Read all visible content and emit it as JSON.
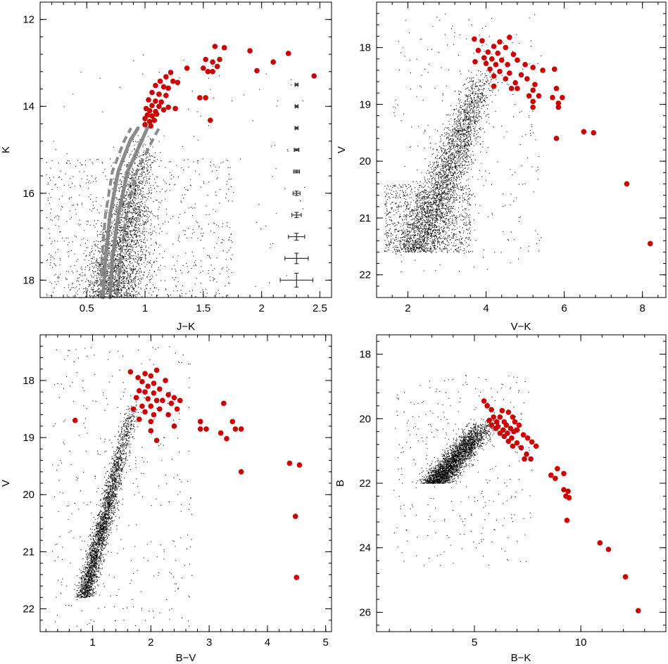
{
  "figure": {
    "colors": {
      "field_star": "#000000",
      "member_star": "#cc0000",
      "isochrone_solid": "#808080",
      "isochrone_dashed": "#808080",
      "error_bar": "#333333"
    }
  },
  "chart_data": [
    {
      "id": "jk-k",
      "type": "scatter",
      "xlabel": "J−K",
      "ylabel": "K",
      "xlim": [
        0.1,
        2.6
      ],
      "ylim": [
        18.4,
        11.6
      ],
      "y_inverted": true,
      "x_ticks": [
        0.5,
        1,
        1.5,
        2,
        2.5
      ],
      "x_tick_labels": [
        "0.5",
        "1",
        "1.5",
        "2",
        "2.5"
      ],
      "y_ticks": [
        12,
        14,
        16,
        18
      ],
      "y_tick_labels": [
        "12",
        "14",
        "16",
        "18"
      ],
      "red_points": [
        [
          1.6,
          12.62
        ],
        [
          1.68,
          12.65
        ],
        [
          1.9,
          12.72
        ],
        [
          2.23,
          12.78
        ],
        [
          1.52,
          12.92
        ],
        [
          1.64,
          12.92
        ],
        [
          1.58,
          12.98
        ],
        [
          2.1,
          12.98
        ],
        [
          1.36,
          13.12
        ],
        [
          1.5,
          13.12
        ],
        [
          1.62,
          13.08
        ],
        [
          1.96,
          13.18
        ],
        [
          1.54,
          13.2
        ],
        [
          1.58,
          13.2
        ],
        [
          1.22,
          13.22
        ],
        [
          1.18,
          13.32
        ],
        [
          1.13,
          13.42
        ],
        [
          1.24,
          13.42
        ],
        [
          1.28,
          13.45
        ],
        [
          2.45,
          13.3
        ],
        [
          1.09,
          13.52
        ],
        [
          1.16,
          13.55
        ],
        [
          1.2,
          13.58
        ],
        [
          1.06,
          13.68
        ],
        [
          1.12,
          13.72
        ],
        [
          1.18,
          13.75
        ],
        [
          1.47,
          13.8
        ],
        [
          1.52,
          13.8
        ],
        [
          1.03,
          13.85
        ],
        [
          1.09,
          13.88
        ],
        [
          1.14,
          13.9
        ],
        [
          1.06,
          13.98
        ],
        [
          1.12,
          14.0
        ],
        [
          1.2,
          14.02
        ],
        [
          1.01,
          14.05
        ],
        [
          1.04,
          14.1
        ],
        [
          1.09,
          14.12
        ],
        [
          1.16,
          14.08
        ],
        [
          1.26,
          14.05
        ],
        [
          1.02,
          14.2
        ],
        [
          1.06,
          14.22
        ],
        [
          1.1,
          14.18
        ],
        [
          1.0,
          14.28
        ],
        [
          1.04,
          14.35
        ],
        [
          1.08,
          14.32
        ],
        [
          1.56,
          14.32
        ],
        [
          1.0,
          14.42
        ],
        [
          1.05,
          14.45
        ]
      ],
      "isochrone_solid": [
        [
          [
            0.64,
            18.4
          ],
          [
            0.66,
            17.5
          ],
          [
            0.7,
            16.5
          ],
          [
            0.77,
            15.5
          ],
          [
            0.87,
            14.8
          ],
          [
            0.94,
            14.5
          ]
        ],
        [
          [
            0.7,
            18.4
          ],
          [
            0.72,
            17.5
          ],
          [
            0.77,
            16.5
          ],
          [
            0.85,
            15.5
          ],
          [
            0.97,
            14.8
          ],
          [
            1.02,
            14.5
          ]
        ]
      ],
      "isochrone_dashed": [
        [
          [
            0.62,
            18.4
          ],
          [
            0.63,
            17.5
          ],
          [
            0.66,
            16.5
          ],
          [
            0.72,
            15.5
          ],
          [
            0.82,
            14.8
          ],
          [
            0.88,
            14.5
          ]
        ],
        [
          [
            0.76,
            18.4
          ],
          [
            0.79,
            17.5
          ],
          [
            0.84,
            16.5
          ],
          [
            0.93,
            15.5
          ],
          [
            1.06,
            14.8
          ],
          [
            1.12,
            14.5
          ]
        ]
      ],
      "error_bars": [
        {
          "x": 2.3,
          "y": 13.5,
          "xerr": 0.012,
          "yerr": 0.02
        },
        {
          "x": 2.3,
          "y": 14.0,
          "xerr": 0.012,
          "yerr": 0.02
        },
        {
          "x": 2.3,
          "y": 14.5,
          "xerr": 0.012,
          "yerr": 0.02
        },
        {
          "x": 2.3,
          "y": 15.0,
          "xerr": 0.02,
          "yerr": 0.02
        },
        {
          "x": 2.3,
          "y": 15.5,
          "xerr": 0.025,
          "yerr": 0.03
        },
        {
          "x": 2.3,
          "y": 16.0,
          "xerr": 0.03,
          "yerr": 0.05
        },
        {
          "x": 2.3,
          "y": 16.5,
          "xerr": 0.04,
          "yerr": 0.06
        },
        {
          "x": 2.3,
          "y": 17.0,
          "xerr": 0.07,
          "yerr": 0.08
        },
        {
          "x": 2.3,
          "y": 17.5,
          "xerr": 0.1,
          "yerr": 0.12
        },
        {
          "x": 2.3,
          "y": 18.0,
          "xerr": 0.14,
          "yerr": 0.16
        }
      ]
    },
    {
      "id": "vk-v",
      "type": "scatter",
      "xlabel": "V−K",
      "ylabel": "V",
      "xlim": [
        1.2,
        8.6
      ],
      "ylim": [
        22.4,
        17.2
      ],
      "y_inverted": true,
      "x_ticks": [
        2,
        4,
        6,
        8
      ],
      "x_tick_labels": [
        "2",
        "4",
        "6",
        "8"
      ],
      "y_ticks": [
        18,
        19,
        20,
        21,
        22
      ],
      "y_tick_labels": [
        "18",
        "19",
        "20",
        "21",
        "22"
      ],
      "red_points": [
        [
          3.7,
          17.85
        ],
        [
          3.9,
          17.88
        ],
        [
          4.35,
          17.9
        ],
        [
          4.6,
          17.82
        ],
        [
          4.2,
          17.98
        ],
        [
          4.5,
          18.0
        ],
        [
          3.8,
          18.05
        ],
        [
          4.05,
          18.08
        ],
        [
          4.3,
          18.1
        ],
        [
          4.7,
          18.12
        ],
        [
          3.95,
          18.18
        ],
        [
          4.15,
          18.2
        ],
        [
          4.4,
          18.22
        ],
        [
          4.8,
          18.22
        ],
        [
          3.72,
          18.25
        ],
        [
          4.0,
          18.28
        ],
        [
          4.25,
          18.3
        ],
        [
          4.55,
          18.3
        ],
        [
          5.0,
          18.3
        ],
        [
          5.2,
          18.35
        ],
        [
          5.45,
          18.4
        ],
        [
          5.75,
          18.38
        ],
        [
          4.1,
          18.38
        ],
        [
          4.35,
          18.42
        ],
        [
          4.6,
          18.45
        ],
        [
          4.9,
          18.48
        ],
        [
          4.2,
          18.5
        ],
        [
          4.5,
          18.55
        ],
        [
          5.05,
          18.55
        ],
        [
          4.75,
          18.62
        ],
        [
          5.25,
          18.65
        ],
        [
          4.2,
          18.68
        ],
        [
          4.65,
          18.72
        ],
        [
          4.8,
          18.72
        ],
        [
          5.2,
          18.75
        ],
        [
          5.8,
          18.72
        ],
        [
          5.1,
          18.85
        ],
        [
          5.35,
          18.85
        ],
        [
          5.7,
          18.88
        ],
        [
          5.95,
          18.88
        ],
        [
          5.2,
          18.95
        ],
        [
          5.85,
          18.98
        ],
        [
          5.2,
          19.05
        ],
        [
          5.85,
          19.05
        ],
        [
          6.5,
          19.48
        ],
        [
          6.75,
          19.5
        ],
        [
          5.8,
          19.6
        ],
        [
          7.6,
          20.4
        ],
        [
          8.2,
          21.45
        ]
      ]
    },
    {
      "id": "bv-v",
      "type": "scatter",
      "xlabel": "B−V",
      "ylabel": "V",
      "xlim": [
        0.1,
        5.1
      ],
      "ylim": [
        22.4,
        17.2
      ],
      "y_inverted": true,
      "x_ticks": [
        1,
        2,
        3,
        4,
        5
      ],
      "x_tick_labels": [
        "1",
        "2",
        "3",
        "4",
        "5"
      ],
      "y_ticks": [
        18,
        19,
        20,
        21,
        22
      ],
      "y_tick_labels": [
        "18",
        "19",
        "20",
        "21",
        "22"
      ],
      "red_points": [
        [
          1.65,
          17.85
        ],
        [
          2.1,
          17.82
        ],
        [
          1.9,
          17.88
        ],
        [
          2.0,
          17.92
        ],
        [
          1.78,
          17.95
        ],
        [
          2.25,
          18.0
        ],
        [
          1.85,
          18.02
        ],
        [
          2.05,
          18.05
        ],
        [
          1.95,
          18.1
        ],
        [
          2.15,
          18.15
        ],
        [
          1.8,
          18.18
        ],
        [
          1.9,
          18.2
        ],
        [
          2.05,
          18.22
        ],
        [
          2.3,
          18.25
        ],
        [
          2.4,
          18.3
        ],
        [
          1.75,
          18.3
        ],
        [
          1.95,
          18.32
        ],
        [
          2.1,
          18.35
        ],
        [
          2.2,
          18.35
        ],
        [
          2.35,
          18.4
        ],
        [
          2.5,
          18.35
        ],
        [
          3.25,
          18.4
        ],
        [
          1.85,
          18.45
        ],
        [
          2.0,
          18.45
        ],
        [
          2.15,
          18.5
        ],
        [
          1.7,
          18.5
        ],
        [
          2.45,
          18.5
        ],
        [
          1.9,
          18.55
        ],
        [
          2.05,
          18.6
        ],
        [
          2.3,
          18.6
        ],
        [
          1.8,
          18.68
        ],
        [
          0.7,
          18.7
        ],
        [
          2.0,
          18.72
        ],
        [
          2.85,
          18.72
        ],
        [
          3.4,
          18.72
        ],
        [
          2.4,
          18.8
        ],
        [
          2.85,
          18.85
        ],
        [
          2.95,
          18.85
        ],
        [
          3.45,
          18.85
        ],
        [
          3.55,
          18.85
        ],
        [
          2.0,
          18.88
        ],
        [
          3.2,
          18.92
        ],
        [
          2.1,
          19.05
        ],
        [
          3.3,
          19.02
        ],
        [
          4.38,
          19.45
        ],
        [
          4.55,
          19.48
        ],
        [
          3.55,
          19.6
        ],
        [
          4.48,
          20.38
        ],
        [
          4.5,
          21.45
        ]
      ]
    },
    {
      "id": "bk-b",
      "type": "scatter",
      "xlabel": "B−K",
      "ylabel": "B",
      "xlim": [
        0.4,
        14.0
      ],
      "ylim": [
        26.6,
        17.4
      ],
      "y_inverted": true,
      "x_ticks": [
        5,
        10
      ],
      "x_tick_labels": [
        "5",
        "10"
      ],
      "y_ticks": [
        18,
        20,
        22,
        24,
        26
      ],
      "y_tick_labels": [
        "18",
        "20",
        "22",
        "24",
        "26"
      ],
      "red_points": [
        [
          5.45,
          19.45
        ],
        [
          5.6,
          19.6
        ],
        [
          5.8,
          19.72
        ],
        [
          6.3,
          19.75
        ],
        [
          6.6,
          19.8
        ],
        [
          5.9,
          19.95
        ],
        [
          6.2,
          19.95
        ],
        [
          6.8,
          19.95
        ],
        [
          5.7,
          20.05
        ],
        [
          6.05,
          20.1
        ],
        [
          6.4,
          20.1
        ],
        [
          6.9,
          20.1
        ],
        [
          5.8,
          20.2
        ],
        [
          6.1,
          20.25
        ],
        [
          6.5,
          20.2
        ],
        [
          7.1,
          20.2
        ],
        [
          6.0,
          20.3
        ],
        [
          6.35,
          20.35
        ],
        [
          6.7,
          20.3
        ],
        [
          7.0,
          20.35
        ],
        [
          6.2,
          20.45
        ],
        [
          6.55,
          20.45
        ],
        [
          6.85,
          20.4
        ],
        [
          7.3,
          20.5
        ],
        [
          6.4,
          20.55
        ],
        [
          6.75,
          20.6
        ],
        [
          7.5,
          20.6
        ],
        [
          6.6,
          20.7
        ],
        [
          7.0,
          20.75
        ],
        [
          7.7,
          20.72
        ],
        [
          6.8,
          20.85
        ],
        [
          7.2,
          20.9
        ],
        [
          7.9,
          20.85
        ],
        [
          7.45,
          21.1
        ],
        [
          7.65,
          21.25
        ],
        [
          7.35,
          21.25
        ],
        [
          8.9,
          21.55
        ],
        [
          9.2,
          21.7
        ],
        [
          8.6,
          21.75
        ],
        [
          8.8,
          21.85
        ],
        [
          9.4,
          22.25
        ],
        [
          9.2,
          22.2
        ],
        [
          9.3,
          22.4
        ],
        [
          9.45,
          22.45
        ],
        [
          9.35,
          23.15
        ],
        [
          10.9,
          23.85
        ],
        [
          11.3,
          24.05
        ],
        [
          12.1,
          24.9
        ],
        [
          12.7,
          25.95
        ]
      ]
    }
  ]
}
